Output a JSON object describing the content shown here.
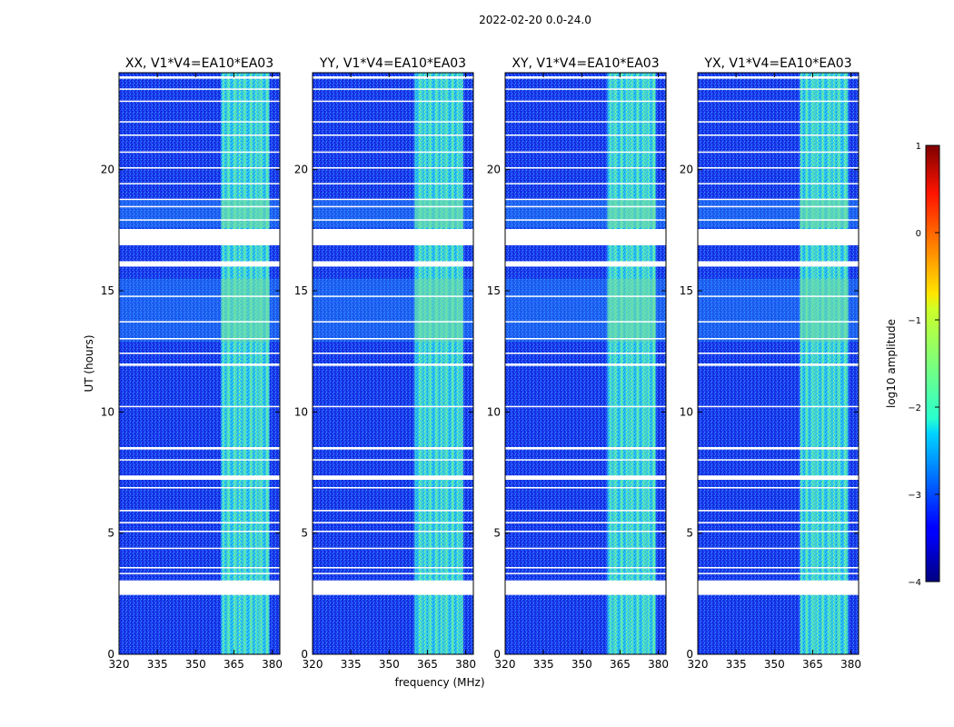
{
  "figure": {
    "suptitle": "2022-02-20 0.0-24.0",
    "xlabel": "frequency (MHz)",
    "ylabel": "UT (hours)"
  },
  "chart_data": {
    "type": "heatmap",
    "x": {
      "range": [
        320,
        383
      ],
      "ticks": [
        320,
        335,
        350,
        365,
        380
      ],
      "tick_labels": [
        "320",
        "335",
        "350",
        "365",
        "380"
      ]
    },
    "y": {
      "range": [
        0,
        24
      ],
      "ticks": [
        0,
        5,
        10,
        15,
        20
      ],
      "tick_labels": [
        "0",
        "5",
        "10",
        "15",
        "20"
      ]
    },
    "panels": [
      {
        "id": "xx",
        "title": "XX, V1*V4=EA10*EA03"
      },
      {
        "id": "yy",
        "title": "YY, V1*V4=EA10*EA03"
      },
      {
        "id": "xy",
        "title": "XY, V1*V4=EA10*EA03"
      },
      {
        "id": "yx",
        "title": "YX, V1*V4=EA10*EA03"
      }
    ],
    "rfi_band_mhz": [
      360,
      379
    ],
    "rfi_band_level": -1.5,
    "background_level": -3.1,
    "enhanced_intervals_ut": [
      [
        12.9,
        15.5
      ],
      [
        17.6,
        18.8
      ]
    ],
    "flagged_intervals_ut": [
      [
        2.45,
        3.05
      ],
      [
        3.32,
        3.36
      ],
      [
        3.55,
        3.6
      ],
      [
        4.35,
        4.4
      ],
      [
        5.05,
        5.1
      ],
      [
        5.4,
        5.46
      ],
      [
        5.9,
        5.96
      ],
      [
        6.85,
        6.9
      ],
      [
        7.2,
        7.38
      ],
      [
        8.0,
        8.05
      ],
      [
        8.45,
        8.55
      ],
      [
        10.2,
        10.25
      ],
      [
        11.9,
        12.0
      ],
      [
        12.4,
        12.45
      ],
      [
        13.0,
        13.05
      ],
      [
        13.7,
        13.75
      ],
      [
        14.75,
        14.8
      ],
      [
        16.0,
        16.22
      ],
      [
        16.88,
        17.55
      ],
      [
        17.9,
        17.95
      ],
      [
        18.45,
        18.5
      ],
      [
        18.75,
        18.8
      ],
      [
        19.4,
        19.45
      ],
      [
        20.05,
        20.1
      ],
      [
        20.7,
        20.75
      ],
      [
        21.4,
        21.45
      ],
      [
        21.95,
        22.0
      ],
      [
        22.8,
        22.85
      ],
      [
        23.3,
        23.35
      ],
      [
        23.75,
        23.85
      ]
    ],
    "colorbar": {
      "label": "log10 amplitude",
      "range": [
        -4,
        1
      ],
      "ticks": [
        -4,
        -3,
        -2,
        -1,
        0,
        1
      ],
      "tick_labels": [
        "−4",
        "−3",
        "−2",
        "−1",
        "0",
        "1"
      ],
      "colormap": "jet"
    }
  }
}
